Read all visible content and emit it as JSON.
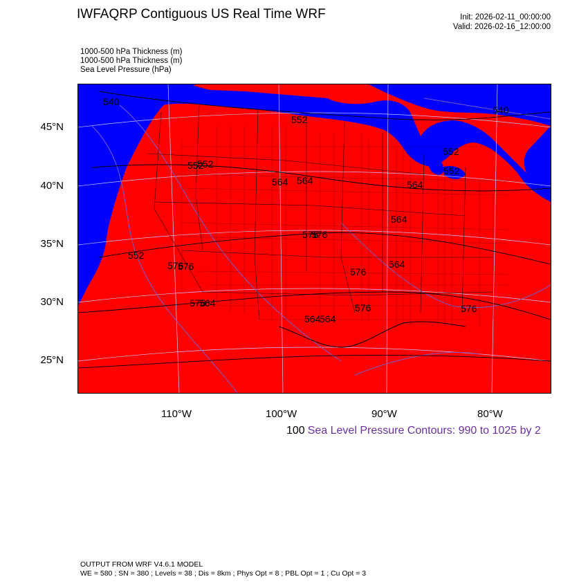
{
  "header": {
    "title": "IWFAQRP Contiguous US Real Time WRF",
    "init": "Init: 2026-02-11_00:00:00",
    "valid": "Valid: 2026-02-16_12:00:00"
  },
  "fields": [
    "1000-500 hPa Thickness   (m)",
    "1000-500 hPa Thickness   (m)",
    "Sea Level Pressure   (hPa)"
  ],
  "map": {
    "colors": {
      "water": "#0000ff",
      "land_fill": "#ff0000",
      "boundary": "#000000",
      "grid": "#c8c8ff",
      "pressure_contour": "#7a5cc8"
    },
    "lat_labels": [
      "45°N",
      "40°N",
      "35°N",
      "30°N",
      "25°N"
    ],
    "lon_labels": [
      "110°W",
      "100°W",
      "90°W",
      "80°W"
    ],
    "contour_labels": [
      "552",
      "552",
      "564",
      "564",
      "564",
      "552",
      "552",
      "552",
      "576",
      "576",
      "564",
      "576",
      "576",
      "576",
      "564",
      "564",
      "564",
      "576",
      "540",
      "552",
      "540",
      "576",
      "564",
      "576"
    ]
  },
  "legend": {
    "lead": "100",
    "text": "Sea Level Pressure Contours: 990 to 1025 by 2"
  },
  "footer": {
    "line1": "OUTPUT FROM WRF V4.6.1 MODEL",
    "line2": "WE = 580 ; SN = 380 ; Levels = 38 ; Dis = 8km ; Phys Opt = 8 ; PBL Opt = 1 ; Cu Opt = 3"
  }
}
